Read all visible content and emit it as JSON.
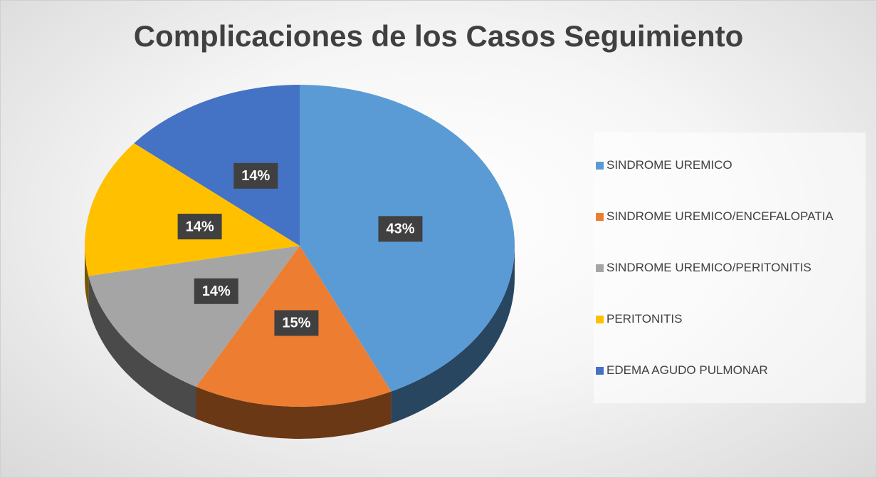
{
  "chart_data": {
    "type": "pie",
    "title": "Complicaciones de los Casos Seguimiento",
    "categories": [
      "SINDROME UREMICO",
      "SINDROME UREMICO/ENCEFALOPATIA",
      "SINDROME UREMICO/PERITONITIS",
      "PERITONITIS",
      "EDEMA AGUDO PULMONAR"
    ],
    "values": [
      43,
      15,
      14,
      14,
      14
    ],
    "value_labels": [
      "43%",
      "15%",
      "14%",
      "14%",
      "14%"
    ],
    "colors": [
      "#5b9bd5",
      "#ed7d31",
      "#a5a5a5",
      "#ffc000",
      "#4472c4"
    ],
    "legend": "right"
  }
}
